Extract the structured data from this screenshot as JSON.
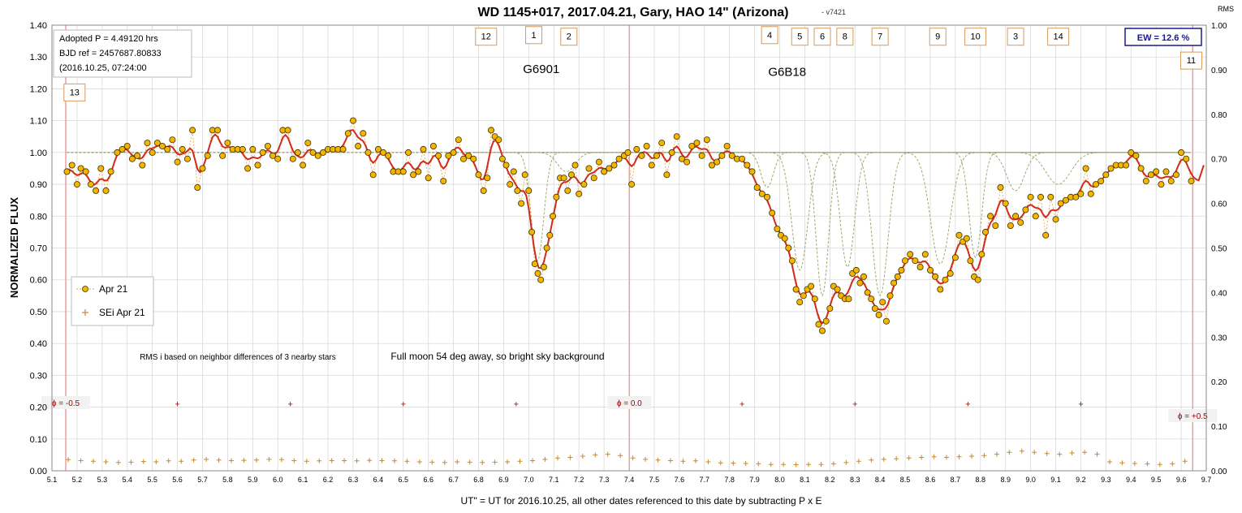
{
  "chart_data": {
    "type": "scatter",
    "title": "WD 1145+017, 2017.04.21, Gary, HAO 14\" (Arizona)",
    "version": "- v7421",
    "xlabel": "UT\" = UT for 2016.10.25, all other dates referenced to this date by subtracting P x E",
    "ylabel": "NORMALIZED FLUX",
    "y2label": "RMS",
    "xlim": [
      5.1,
      9.7
    ],
    "ylim": [
      0.0,
      1.4
    ],
    "y2lim": [
      0.0,
      1.0
    ],
    "grid": true,
    "legend_position": "left-middle",
    "xticks": [
      "5.1",
      "5.2",
      "5.3",
      "5.4",
      "5.5",
      "5.6",
      "5.7",
      "5.8",
      "5.9",
      "6.0",
      "6.1",
      "6.2",
      "6.3",
      "6.4",
      "6.5",
      "6.6",
      "6.7",
      "6.8",
      "6.9",
      "7.0",
      "7.1",
      "7.2",
      "7.3",
      "7.4",
      "7.5",
      "7.6",
      "7.7",
      "7.8",
      "7.9",
      "8.0",
      "8.1",
      "8.2",
      "8.3",
      "8.4",
      "8.5",
      "8.6",
      "8.7",
      "8.8",
      "8.9",
      "9.0",
      "9.1",
      "9.2",
      "9.3",
      "9.4",
      "9.5",
      "9.6",
      "9.7"
    ],
    "yticks": [
      "0.00",
      "0.10",
      "0.20",
      "0.30",
      "0.40",
      "0.50",
      "0.60",
      "0.70",
      "0.80",
      "0.90",
      "1.00",
      "1.10",
      "1.20",
      "1.30",
      "1.40"
    ],
    "y2ticks": [
      "0.00",
      "0.10",
      "0.20",
      "0.30",
      "0.40",
      "0.50",
      "0.60",
      "0.70",
      "0.80",
      "0.90",
      "1.00"
    ],
    "info_box": [
      "Adopted P = 4.49120  hrs",
      "BJD ref = 2457687.80833",
      "(2016.10.25,  07:24:00"
    ],
    "ew_label": "EW = 12.6 %",
    "annotations": [
      {
        "text": "G6901",
        "x": 7.05,
        "y": 1.25
      },
      {
        "text": "G6B18",
        "x": 8.03,
        "y": 1.24
      },
      {
        "text": "RMS i based on neighbor differences of 3 nearby stars",
        "x": 5.45,
        "y": 0.35
      },
      {
        "text": "Full moon 54 deg away, so bright sky background",
        "x": 6.45,
        "y": 0.35
      }
    ],
    "dip_labels": [
      {
        "text": "12",
        "x": 6.83,
        "y": 1.365
      },
      {
        "text": "1",
        "x": 7.02,
        "y": 1.37
      },
      {
        "text": "2",
        "x": 7.16,
        "y": 1.365
      },
      {
        "text": "4",
        "x": 7.96,
        "y": 1.37
      },
      {
        "text": "5",
        "x": 8.08,
        "y": 1.365
      },
      {
        "text": "6",
        "x": 8.17,
        "y": 1.365
      },
      {
        "text": "8",
        "x": 8.26,
        "y": 1.365
      },
      {
        "text": "7",
        "x": 8.4,
        "y": 1.365
      },
      {
        "text": "9",
        "x": 8.63,
        "y": 1.365
      },
      {
        "text": "10",
        "x": 8.78,
        "y": 1.365
      },
      {
        "text": "3",
        "x": 8.94,
        "y": 1.365
      },
      {
        "text": "14",
        "x": 9.11,
        "y": 1.365
      },
      {
        "text": "11",
        "x": 9.64,
        "y": 1.29
      },
      {
        "text": "13",
        "x": 5.19,
        "y": 1.19
      }
    ],
    "phase_markers": [
      {
        "text": "ϕ = -0.5",
        "x": 5.155
      },
      {
        "text": "ϕ = 0.0",
        "x": 7.401
      },
      {
        "text": "ϕ = +0.5",
        "x": 9.646
      }
    ],
    "phase_plus_x": [
      5.6,
      6.05,
      6.5,
      6.95,
      7.85,
      8.3,
      8.75,
      9.2
    ],
    "phase_plus_y": 0.21,
    "legend": [
      "Apr 21",
      "SEi Apr 21"
    ],
    "dips": [
      {
        "center": 7.035,
        "depth": 0.34,
        "width": 0.035
      },
      {
        "center": 7.15,
        "depth": 0.06,
        "width": 0.05
      },
      {
        "center": 7.95,
        "depth": 0.11,
        "width": 0.035
      },
      {
        "center": 8.08,
        "depth": 0.37,
        "width": 0.045
      },
      {
        "center": 8.17,
        "depth": 0.45,
        "width": 0.035
      },
      {
        "center": 8.27,
        "depth": 0.36,
        "width": 0.04
      },
      {
        "center": 8.4,
        "depth": 0.45,
        "width": 0.045
      },
      {
        "center": 8.64,
        "depth": 0.35,
        "width": 0.055
      },
      {
        "center": 8.78,
        "depth": 0.33,
        "width": 0.035
      },
      {
        "center": 8.94,
        "depth": 0.12,
        "width": 0.05
      },
      {
        "center": 9.11,
        "depth": 0.1,
        "width": 0.07
      }
    ],
    "flux_points": [
      [
        5.16,
        0.94
      ],
      [
        5.18,
        0.96
      ],
      [
        5.2,
        0.9
      ],
      [
        5.215,
        0.95
      ],
      [
        5.235,
        0.94
      ],
      [
        5.255,
        0.9
      ],
      [
        5.275,
        0.88
      ],
      [
        5.295,
        0.95
      ],
      [
        5.315,
        0.88
      ],
      [
        5.335,
        0.94
      ],
      [
        5.36,
        1.0
      ],
      [
        5.38,
        1.01
      ],
      [
        5.4,
        1.02
      ],
      [
        5.42,
        0.98
      ],
      [
        5.44,
        0.99
      ],
      [
        5.46,
        0.96
      ],
      [
        5.48,
        1.03
      ],
      [
        5.5,
        1.0
      ],
      [
        5.52,
        1.03
      ],
      [
        5.54,
        1.02
      ],
      [
        5.56,
        1.01
      ],
      [
        5.58,
        1.04
      ],
      [
        5.6,
        0.97
      ],
      [
        5.62,
        1.01
      ],
      [
        5.64,
        0.98
      ],
      [
        5.66,
        1.07
      ],
      [
        5.68,
        0.89
      ],
      [
        5.7,
        0.95
      ],
      [
        5.72,
        0.99
      ],
      [
        5.74,
        1.07
      ],
      [
        5.76,
        1.07
      ],
      [
        5.78,
        0.99
      ],
      [
        5.8,
        1.03
      ],
      [
        5.82,
        1.01
      ],
      [
        5.84,
        1.01
      ],
      [
        5.86,
        1.01
      ],
      [
        5.88,
        0.95
      ],
      [
        5.9,
        1.01
      ],
      [
        5.92,
        0.96
      ],
      [
        5.94,
        1.0
      ],
      [
        5.96,
        1.02
      ],
      [
        5.98,
        0.99
      ],
      [
        6.0,
        0.98
      ],
      [
        6.02,
        1.07
      ],
      [
        6.04,
        1.07
      ],
      [
        6.06,
        0.98
      ],
      [
        6.08,
        1.0
      ],
      [
        6.1,
        0.96
      ],
      [
        6.12,
        1.03
      ],
      [
        6.14,
        1.0
      ],
      [
        6.16,
        0.99
      ],
      [
        6.18,
        1.0
      ],
      [
        6.2,
        1.01
      ],
      [
        6.22,
        1.01
      ],
      [
        6.24,
        1.01
      ],
      [
        6.26,
        1.01
      ],
      [
        6.28,
        1.06
      ],
      [
        6.3,
        1.1
      ],
      [
        6.32,
        1.02
      ],
      [
        6.34,
        1.06
      ],
      [
        6.36,
        1.0
      ],
      [
        6.38,
        0.93
      ],
      [
        6.4,
        1.01
      ],
      [
        6.42,
        1.0
      ],
      [
        6.44,
        0.99
      ],
      [
        6.46,
        0.94
      ],
      [
        6.48,
        0.94
      ],
      [
        6.5,
        0.94
      ],
      [
        6.52,
        1.0
      ],
      [
        6.54,
        0.93
      ],
      [
        6.56,
        0.94
      ],
      [
        6.58,
        1.01
      ],
      [
        6.6,
        0.92
      ],
      [
        6.62,
        1.02
      ],
      [
        6.64,
        0.99
      ],
      [
        6.66,
        0.91
      ],
      [
        6.68,
        0.99
      ],
      [
        6.7,
        1.0
      ],
      [
        6.72,
        1.04
      ],
      [
        6.74,
        0.98
      ],
      [
        6.76,
        0.99
      ],
      [
        6.78,
        0.98
      ],
      [
        6.8,
        0.93
      ],
      [
        6.82,
        0.88
      ],
      [
        6.835,
        0.92
      ],
      [
        6.85,
        1.07
      ],
      [
        6.865,
        1.05
      ],
      [
        6.88,
        1.04
      ],
      [
        6.895,
        0.98
      ],
      [
        6.91,
        0.96
      ],
      [
        6.925,
        0.9
      ],
      [
        6.94,
        0.94
      ],
      [
        6.955,
        0.88
      ],
      [
        6.97,
        0.84
      ],
      [
        6.985,
        0.93
      ],
      [
        7.0,
        0.88
      ],
      [
        7.012,
        0.75
      ],
      [
        7.024,
        0.65
      ],
      [
        7.036,
        0.62
      ],
      [
        7.048,
        0.6
      ],
      [
        7.06,
        0.64
      ],
      [
        7.072,
        0.7
      ],
      [
        7.084,
        0.74
      ],
      [
        7.096,
        0.8
      ],
      [
        7.11,
        0.86
      ],
      [
        7.125,
        0.92
      ],
      [
        7.14,
        0.92
      ],
      [
        7.155,
        0.88
      ],
      [
        7.17,
        0.93
      ],
      [
        7.185,
        0.96
      ],
      [
        7.2,
        0.87
      ],
      [
        7.22,
        0.9
      ],
      [
        7.24,
        0.95
      ],
      [
        7.26,
        0.92
      ],
      [
        7.28,
        0.97
      ],
      [
        7.3,
        0.94
      ],
      [
        7.32,
        0.95
      ],
      [
        7.34,
        0.96
      ],
      [
        7.36,
        0.98
      ],
      [
        7.38,
        0.99
      ],
      [
        7.395,
        1.0
      ],
      [
        7.41,
        0.9
      ],
      [
        7.43,
        1.01
      ],
      [
        7.45,
        0.99
      ],
      [
        7.47,
        1.02
      ],
      [
        7.49,
        0.96
      ],
      [
        7.51,
        0.99
      ],
      [
        7.53,
        1.03
      ],
      [
        7.55,
        0.93
      ],
      [
        7.57,
        1.0
      ],
      [
        7.59,
        1.05
      ],
      [
        7.61,
        0.98
      ],
      [
        7.63,
        0.97
      ],
      [
        7.65,
        1.02
      ],
      [
        7.67,
        1.03
      ],
      [
        7.69,
        0.99
      ],
      [
        7.71,
        1.04
      ],
      [
        7.73,
        0.96
      ],
      [
        7.75,
        0.97
      ],
      [
        7.77,
        0.99
      ],
      [
        7.79,
        1.02
      ],
      [
        7.81,
        0.99
      ],
      [
        7.83,
        0.98
      ],
      [
        7.85,
        0.98
      ],
      [
        7.87,
        0.96
      ],
      [
        7.89,
        0.94
      ],
      [
        7.91,
        0.89
      ],
      [
        7.93,
        0.87
      ],
      [
        7.95,
        0.86
      ],
      [
        7.97,
        0.81
      ],
      [
        7.99,
        0.76
      ],
      [
        8.005,
        0.74
      ],
      [
        8.02,
        0.73
      ],
      [
        8.035,
        0.7
      ],
      [
        8.05,
        0.66
      ],
      [
        8.065,
        0.57
      ],
      [
        8.08,
        0.53
      ],
      [
        8.095,
        0.55
      ],
      [
        8.11,
        0.57
      ],
      [
        8.125,
        0.58
      ],
      [
        8.14,
        0.54
      ],
      [
        8.155,
        0.46
      ],
      [
        8.17,
        0.44
      ],
      [
        8.185,
        0.47
      ],
      [
        8.2,
        0.51
      ],
      [
        8.215,
        0.58
      ],
      [
        8.23,
        0.57
      ],
      [
        8.245,
        0.55
      ],
      [
        8.26,
        0.54
      ],
      [
        8.275,
        0.54
      ],
      [
        8.29,
        0.62
      ],
      [
        8.305,
        0.63
      ],
      [
        8.32,
        0.59
      ],
      [
        8.335,
        0.61
      ],
      [
        8.35,
        0.56
      ],
      [
        8.365,
        0.54
      ],
      [
        8.38,
        0.51
      ],
      [
        8.395,
        0.49
      ],
      [
        8.41,
        0.53
      ],
      [
        8.425,
        0.47
      ],
      [
        8.44,
        0.55
      ],
      [
        8.455,
        0.59
      ],
      [
        8.47,
        0.61
      ],
      [
        8.485,
        0.63
      ],
      [
        8.5,
        0.66
      ],
      [
        8.52,
        0.68
      ],
      [
        8.54,
        0.66
      ],
      [
        8.56,
        0.64
      ],
      [
        8.58,
        0.68
      ],
      [
        8.6,
        0.63
      ],
      [
        8.62,
        0.61
      ],
      [
        8.64,
        0.57
      ],
      [
        8.66,
        0.6
      ],
      [
        8.68,
        0.62
      ],
      [
        8.7,
        0.67
      ],
      [
        8.715,
        0.74
      ],
      [
        8.73,
        0.72
      ],
      [
        8.745,
        0.73
      ],
      [
        8.76,
        0.66
      ],
      [
        8.775,
        0.61
      ],
      [
        8.79,
        0.6
      ],
      [
        8.805,
        0.68
      ],
      [
        8.82,
        0.75
      ],
      [
        8.84,
        0.8
      ],
      [
        8.86,
        0.77
      ],
      [
        8.88,
        0.89
      ],
      [
        8.9,
        0.84
      ],
      [
        8.92,
        0.77
      ],
      [
        8.94,
        0.8
      ],
      [
        8.96,
        0.78
      ],
      [
        8.98,
        0.82
      ],
      [
        9.0,
        0.86
      ],
      [
        9.02,
        0.8
      ],
      [
        9.04,
        0.86
      ],
      [
        9.06,
        0.74
      ],
      [
        9.08,
        0.86
      ],
      [
        9.1,
        0.79
      ],
      [
        9.12,
        0.84
      ],
      [
        9.14,
        0.85
      ],
      [
        9.16,
        0.86
      ],
      [
        9.18,
        0.86
      ],
      [
        9.2,
        0.87
      ],
      [
        9.22,
        0.95
      ],
      [
        9.24,
        0.87
      ],
      [
        9.26,
        0.9
      ],
      [
        9.28,
        0.91
      ],
      [
        9.3,
        0.93
      ],
      [
        9.32,
        0.95
      ],
      [
        9.34,
        0.96
      ],
      [
        9.36,
        0.96
      ],
      [
        9.38,
        0.96
      ],
      [
        9.4,
        1.0
      ],
      [
        9.42,
        0.99
      ],
      [
        9.44,
        0.95
      ],
      [
        9.46,
        0.91
      ],
      [
        9.48,
        0.93
      ],
      [
        9.5,
        0.94
      ],
      [
        9.52,
        0.9
      ],
      [
        9.54,
        0.94
      ],
      [
        9.56,
        0.91
      ],
      [
        9.58,
        0.93
      ],
      [
        9.6,
        1.0
      ],
      [
        9.62,
        0.98
      ],
      [
        9.64,
        0.91
      ]
    ],
    "sei_points": [
      [
        5.165,
        0.035
      ],
      [
        5.215,
        0.032
      ],
      [
        5.265,
        0.03
      ],
      [
        5.315,
        0.028
      ],
      [
        5.365,
        0.026
      ],
      [
        5.415,
        0.027
      ],
      [
        5.465,
        0.029
      ],
      [
        5.515,
        0.028
      ],
      [
        5.565,
        0.031
      ],
      [
        5.615,
        0.03
      ],
      [
        5.665,
        0.034
      ],
      [
        5.715,
        0.036
      ],
      [
        5.765,
        0.034
      ],
      [
        5.815,
        0.032
      ],
      [
        5.865,
        0.033
      ],
      [
        5.915,
        0.034
      ],
      [
        5.965,
        0.036
      ],
      [
        6.015,
        0.035
      ],
      [
        6.065,
        0.032
      ],
      [
        6.115,
        0.03
      ],
      [
        6.165,
        0.031
      ],
      [
        6.215,
        0.032
      ],
      [
        6.265,
        0.032
      ],
      [
        6.315,
        0.031
      ],
      [
        6.365,
        0.033
      ],
      [
        6.415,
        0.032
      ],
      [
        6.465,
        0.031
      ],
      [
        6.515,
        0.03
      ],
      [
        6.565,
        0.028
      ],
      [
        6.615,
        0.027
      ],
      [
        6.665,
        0.026
      ],
      [
        6.715,
        0.028
      ],
      [
        6.765,
        0.027
      ],
      [
        6.815,
        0.026
      ],
      [
        6.865,
        0.027
      ],
      [
        6.915,
        0.028
      ],
      [
        6.965,
        0.03
      ],
      [
        7.015,
        0.032
      ],
      [
        7.065,
        0.036
      ],
      [
        7.115,
        0.04
      ],
      [
        7.165,
        0.042
      ],
      [
        7.215,
        0.046
      ],
      [
        7.265,
        0.05
      ],
      [
        7.315,
        0.052
      ],
      [
        7.365,
        0.048
      ],
      [
        7.415,
        0.04
      ],
      [
        7.465,
        0.036
      ],
      [
        7.515,
        0.034
      ],
      [
        7.565,
        0.032
      ],
      [
        7.615,
        0.03
      ],
      [
        7.665,
        0.031
      ],
      [
        7.715,
        0.028
      ],
      [
        7.765,
        0.025
      ],
      [
        7.815,
        0.024
      ],
      [
        7.865,
        0.023
      ],
      [
        7.915,
        0.022
      ],
      [
        7.965,
        0.02
      ],
      [
        8.015,
        0.02
      ],
      [
        8.065,
        0.019
      ],
      [
        8.115,
        0.02
      ],
      [
        8.165,
        0.02
      ],
      [
        8.215,
        0.022
      ],
      [
        8.265,
        0.026
      ],
      [
        8.315,
        0.03
      ],
      [
        8.365,
        0.034
      ],
      [
        8.415,
        0.036
      ],
      [
        8.465,
        0.038
      ],
      [
        8.515,
        0.04
      ],
      [
        8.565,
        0.042
      ],
      [
        8.615,
        0.044
      ],
      [
        8.665,
        0.042
      ],
      [
        8.715,
        0.044
      ],
      [
        8.765,
        0.046
      ],
      [
        8.815,
        0.048
      ],
      [
        8.865,
        0.052
      ],
      [
        8.915,
        0.058
      ],
      [
        8.965,
        0.062
      ],
      [
        9.015,
        0.058
      ],
      [
        9.065,
        0.054
      ],
      [
        9.115,
        0.052
      ],
      [
        9.165,
        0.056
      ],
      [
        9.215,
        0.058
      ],
      [
        9.265,
        0.052
      ],
      [
        9.315,
        0.028
      ],
      [
        9.365,
        0.025
      ],
      [
        9.415,
        0.023
      ],
      [
        9.465,
        0.022
      ],
      [
        9.515,
        0.02
      ],
      [
        9.565,
        0.022
      ],
      [
        9.615,
        0.03
      ]
    ]
  }
}
